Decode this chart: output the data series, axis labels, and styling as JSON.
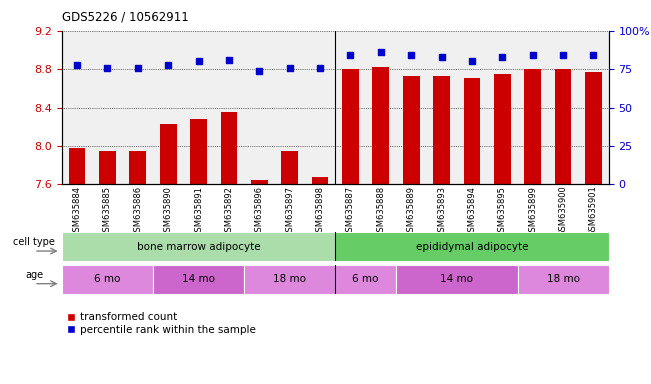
{
  "title": "GDS5226 / 10562911",
  "samples": [
    "GSM635884",
    "GSM635885",
    "GSM635886",
    "GSM635890",
    "GSM635891",
    "GSM635892",
    "GSM635896",
    "GSM635897",
    "GSM635898",
    "GSM635887",
    "GSM635888",
    "GSM635889",
    "GSM635893",
    "GSM635894",
    "GSM635895",
    "GSM635899",
    "GSM635900",
    "GSM635901"
  ],
  "bar_values": [
    7.98,
    7.95,
    7.95,
    8.23,
    8.28,
    8.35,
    7.65,
    7.95,
    7.68,
    8.8,
    8.82,
    8.73,
    8.73,
    8.71,
    8.75,
    8.8,
    8.8,
    8.77
  ],
  "percentile_values": [
    78,
    76,
    76,
    78,
    80,
    81,
    74,
    76,
    76,
    84,
    86,
    84,
    83,
    80,
    83,
    84,
    84,
    84
  ],
  "ylim_left": [
    7.6,
    9.2
  ],
  "ylim_right": [
    0,
    100
  ],
  "yticks_left": [
    7.6,
    8.0,
    8.4,
    8.8,
    9.2
  ],
  "yticks_right": [
    0,
    25,
    50,
    75,
    100
  ],
  "bar_color": "#cc0000",
  "percentile_color": "#0000cc",
  "bar_bottom": 7.6,
  "cell_types": [
    {
      "label": "bone marrow adipocyte",
      "start": 0,
      "end": 9,
      "color": "#aaddaa"
    },
    {
      "label": "epididymal adipocyte",
      "start": 9,
      "end": 18,
      "color": "#66cc66"
    }
  ],
  "ages": [
    {
      "label": "6 mo",
      "start": 0,
      "end": 3,
      "color": "#dd88dd"
    },
    {
      "label": "14 mo",
      "start": 3,
      "end": 6,
      "color": "#cc66cc"
    },
    {
      "label": "18 mo",
      "start": 6,
      "end": 9,
      "color": "#dd88dd"
    },
    {
      "label": "6 mo",
      "start": 9,
      "end": 11,
      "color": "#dd88dd"
    },
    {
      "label": "14 mo",
      "start": 11,
      "end": 15,
      "color": "#cc66cc"
    },
    {
      "label": "18 mo",
      "start": 15,
      "end": 18,
      "color": "#dd88dd"
    }
  ],
  "cell_type_label": "cell type",
  "age_label": "age",
  "legend_items": [
    {
      "label": "transformed count",
      "color": "#cc0000"
    },
    {
      "label": "percentile rank within the sample",
      "color": "#0000cc"
    }
  ],
  "sep_index": 8.5,
  "bg_color": "#f0f0f0"
}
